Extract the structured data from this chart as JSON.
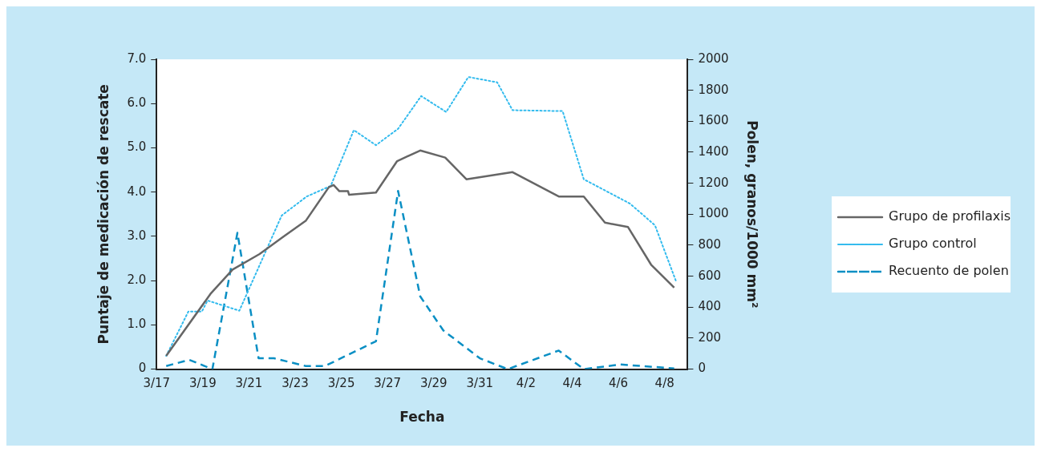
{
  "chart_data": {
    "type": "line",
    "xlabel": "Fecha",
    "ylabel": "Puntaje de medicación de rescate",
    "y2label": "Polen, granos/1000 mm²",
    "xlim": [
      "--03-17",
      "--04-09"
    ],
    "xticks": [
      {
        "value": "--03-17",
        "label": "3/17"
      },
      {
        "value": "--03-19",
        "label": "3/19"
      },
      {
        "value": "--03-21",
        "label": "3/21"
      },
      {
        "value": "--03-23",
        "label": "3/23"
      },
      {
        "value": "--03-25",
        "label": "3/25"
      },
      {
        "value": "--03-27",
        "label": "3/27"
      },
      {
        "value": "--03-29",
        "label": "3/29"
      },
      {
        "value": "--03-31",
        "label": "3/31"
      },
      {
        "value": "--04-02",
        "label": "4/2"
      },
      {
        "value": "--04-04",
        "label": "4/4"
      },
      {
        "value": "--04-06",
        "label": "4/6"
      },
      {
        "value": "--04-08",
        "label": "4/8"
      }
    ],
    "ylim": [
      0,
      7
    ],
    "yticks": [
      0,
      {
        "value": 1,
        "label": "1.0"
      },
      {
        "value": 2,
        "label": "2.0"
      },
      {
        "value": 3,
        "label": "3.0"
      },
      {
        "value": 4,
        "label": "4.0"
      },
      {
        "value": 5,
        "label": "5.0"
      },
      {
        "value": 6,
        "label": "6.0"
      },
      {
        "value": 7,
        "label": "7.0"
      }
    ],
    "y2lim": [
      0,
      2000
    ],
    "y2ticks": [
      0,
      200,
      400,
      600,
      800,
      1000,
      1200,
      1400,
      1600,
      1800,
      2000
    ],
    "grid": false,
    "legend": "right",
    "marker": "none",
    "series": [
      {
        "name": "Grupo de profilaxis",
        "color": "#666666",
        "line_style": "solid",
        "x": [
          "--03-17T10:00",
          "--03-19T08:00",
          "--03-20T07:00",
          "--03-21T11:00",
          "--03-22T11:00",
          "--03-23T11:00",
          "--03-24T11:00",
          "--03-24T16:00",
          "--03-24T22:00",
          "--03-25T07:00",
          "--03-25T08:00",
          "--03-26T12:00",
          "--03-27T10:00",
          "--03-28T10:00",
          "--03-29T12:00",
          "--03-30T10:00",
          "--04-01T10:00",
          "--04-03T10:00",
          "--04-04T12:00",
          "--04-05T10:00",
          "--04-06T10:00",
          "--04-07T10:00",
          "--04-08T10:00"
        ],
        "values": [
          0.3,
          1.7,
          2.25,
          2.6,
          2.98,
          3.35,
          4.11,
          4.16,
          4.02,
          4.02,
          3.94,
          3.99,
          4.7,
          4.94,
          4.78,
          4.29,
          4.45,
          3.9,
          3.9,
          3.31,
          3.21,
          2.36,
          1.84
        ]
      },
      {
        "name": "Grupo control",
        "color": "#33bbee",
        "line_style": "dotted",
        "x": [
          "--03-17T10:00",
          "--03-18T09:00",
          "--03-18T23:00",
          "--03-19T05:00",
          "--03-20T14:00",
          "--03-22T10:00",
          "--03-23T12:00",
          "--03-24T13:00",
          "--03-25T13:00",
          "--03-26T12:00",
          "--03-27T11:00",
          "--03-28T11:00",
          "--03-29T13:00",
          "--03-30T12:00",
          "--03-31T18:00",
          "--04-01T10:00",
          "--04-03T14:00",
          "--04-04T12:00",
          "--04-06T12:00",
          "--04-07T14:00",
          "--04-08T12:00"
        ],
        "values": [
          0.3,
          1.3,
          1.3,
          1.55,
          1.32,
          3.47,
          3.9,
          4.14,
          5.4,
          5.06,
          5.43,
          6.17,
          5.81,
          6.6,
          6.48,
          5.85,
          5.83,
          4.29,
          3.74,
          3.25,
          1.98
        ]
      },
      {
        "name": "Recuento de polen",
        "color": "#0a8fc4",
        "line_style": "dashed",
        "axis": "y2",
        "x": [
          "--03-17T10:00",
          "--03-18T10:00",
          "--03-19T10:00",
          "--03-20T12:00",
          "--03-21T10:00",
          "--03-22T02:00",
          "--03-23T11:00",
          "--03-24T07:00",
          "--03-26T12:00",
          "--03-27T11:00",
          "--03-28T10:00",
          "--03-29T10:00",
          "--03-31T00:00",
          "--04-01T05:00",
          "--04-03T10:00",
          "--04-04T12:00",
          "--04-06T02:00",
          "--04-08T10:00"
        ],
        "values": [
          20,
          60,
          0,
          880,
          70,
          70,
          20,
          20,
          180,
          1150,
          470,
          250,
          70,
          0,
          120,
          0,
          30,
          5
        ]
      }
    ]
  }
}
